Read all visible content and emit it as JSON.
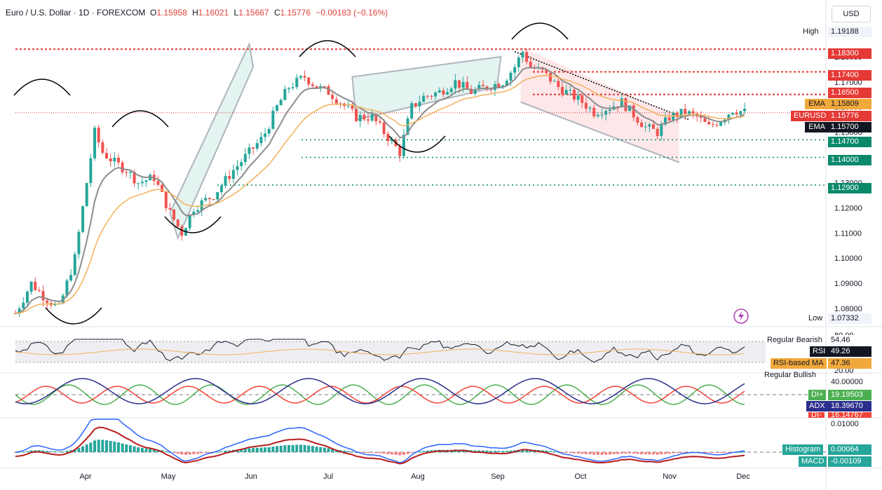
{
  "header": {
    "symbol": "Euro / U.S. Dollar · 1D · FOREXCOM",
    "o_label": "O",
    "o_value": "1.15958",
    "h_label": "H",
    "h_value": "1.16021",
    "l_label": "L",
    "l_value": "1.15667",
    "c_label": "C",
    "c_value": "1.15776",
    "change": "−0.00183 (−0.16%)"
  },
  "currency_button": "USD",
  "colors": {
    "up": "#26a69a",
    "down": "#ef5350",
    "ema_fast": "#8c8c8c",
    "ema_slow": "#f2b15a",
    "level_red": "#e53935",
    "level_green": "#0a8a6b",
    "pivot_arc": "#000000",
    "channel_fill_up": "#e3f4f1",
    "channel_fill_down": "#fde7e9",
    "adx": "#2a2e8c",
    "di_plus": "#4caf50",
    "di_minus": "#f44336",
    "macd_line": "#2962ff",
    "signal_line": "#b71c1c"
  },
  "chart_data": {
    "type": "candlestick",
    "title": "Euro / U.S. Dollar · 1D · FOREXCOM",
    "x_months": [
      "Apr",
      "May",
      "Jun",
      "Jul",
      "Aug",
      "Sep",
      "Oct",
      "Nov",
      "Dec"
    ],
    "y_ticks": [
      "1.19000",
      "1.18000",
      "1.17000",
      "1.16000",
      "1.15000",
      "1.14000",
      "1.13000",
      "1.12000",
      "1.11000",
      "1.10000",
      "1.09000",
      "1.08000"
    ],
    "ylim": [
      1.072,
      1.193
    ],
    "high": "1.19188",
    "low": "1.07332",
    "levels_red": [
      "1.18300",
      "1.17400",
      "1.16500"
    ],
    "levels_green": [
      "1.14700",
      "1.14000",
      "1.12900"
    ],
    "ema_fast_value": "1.15809",
    "ema_slow_value": "1.15700",
    "last_price": "1.15776",
    "price_path": [
      [
        0,
        1.078
      ],
      [
        8,
        1.09
      ],
      [
        14,
        1.085
      ],
      [
        22,
        1.08
      ],
      [
        30,
        1.1
      ],
      [
        36,
        1.13
      ],
      [
        40,
        1.15
      ],
      [
        44,
        1.142
      ],
      [
        50,
        1.138
      ],
      [
        56,
        1.135
      ],
      [
        62,
        1.13
      ],
      [
        70,
        1.132
      ],
      [
        78,
        1.118
      ],
      [
        84,
        1.11
      ],
      [
        90,
        1.12
      ],
      [
        100,
        1.125
      ],
      [
        110,
        1.135
      ],
      [
        118,
        1.142
      ],
      [
        125,
        1.148
      ],
      [
        132,
        1.16
      ],
      [
        138,
        1.168
      ],
      [
        146,
        1.172
      ],
      [
        152,
        1.168
      ],
      [
        158,
        1.166
      ],
      [
        164,
        1.162
      ],
      [
        172,
        1.156
      ],
      [
        180,
        1.156
      ],
      [
        186,
        1.15
      ],
      [
        194,
        1.142
      ],
      [
        200,
        1.16
      ],
      [
        206,
        1.164
      ],
      [
        214,
        1.166
      ],
      [
        222,
        1.17
      ],
      [
        230,
        1.166
      ],
      [
        238,
        1.168
      ],
      [
        246,
        1.17
      ],
      [
        252,
        1.176
      ],
      [
        256,
        1.182
      ],
      [
        260,
        1.176
      ],
      [
        266,
        1.174
      ],
      [
        274,
        1.168
      ],
      [
        280,
        1.165
      ],
      [
        286,
        1.162
      ],
      [
        292,
        1.158
      ],
      [
        300,
        1.16
      ],
      [
        306,
        1.162
      ],
      [
        312,
        1.157
      ],
      [
        318,
        1.152
      ],
      [
        324,
        1.15
      ],
      [
        330,
        1.156
      ],
      [
        338,
        1.158
      ],
      [
        344,
        1.156
      ],
      [
        350,
        1.152
      ],
      [
        356,
        1.155
      ],
      [
        362,
        1.159
      ],
      [
        368,
        1.158
      ]
    ],
    "price_path_x_range": [
      0,
      368
    ],
    "rsi": {
      "ticks": [
        "80.00",
        "20.00"
      ],
      "value": "49.26",
      "ma_value": "47.36",
      "label": "RSI",
      "ma_label": "RSI-based MA",
      "regular_bearish_label": "Regular Bearish",
      "regular_bearish_value": "54.46",
      "regular_bullish_label": "Regular Bullish"
    },
    "dmi": {
      "tick": "40.00000",
      "di_plus_label": "DI+",
      "di_plus_value": "19.19503",
      "adx_label": "ADX",
      "adx_value": "18.39670",
      "di_minus_label": "DI-",
      "di_minus_value": "16.14767"
    },
    "macd": {
      "tick": "0.01000",
      "histogram_label": "Histogram",
      "histogram_value": "0.00064",
      "macd_label": "MACD",
      "macd_value": "-0.00109"
    }
  }
}
